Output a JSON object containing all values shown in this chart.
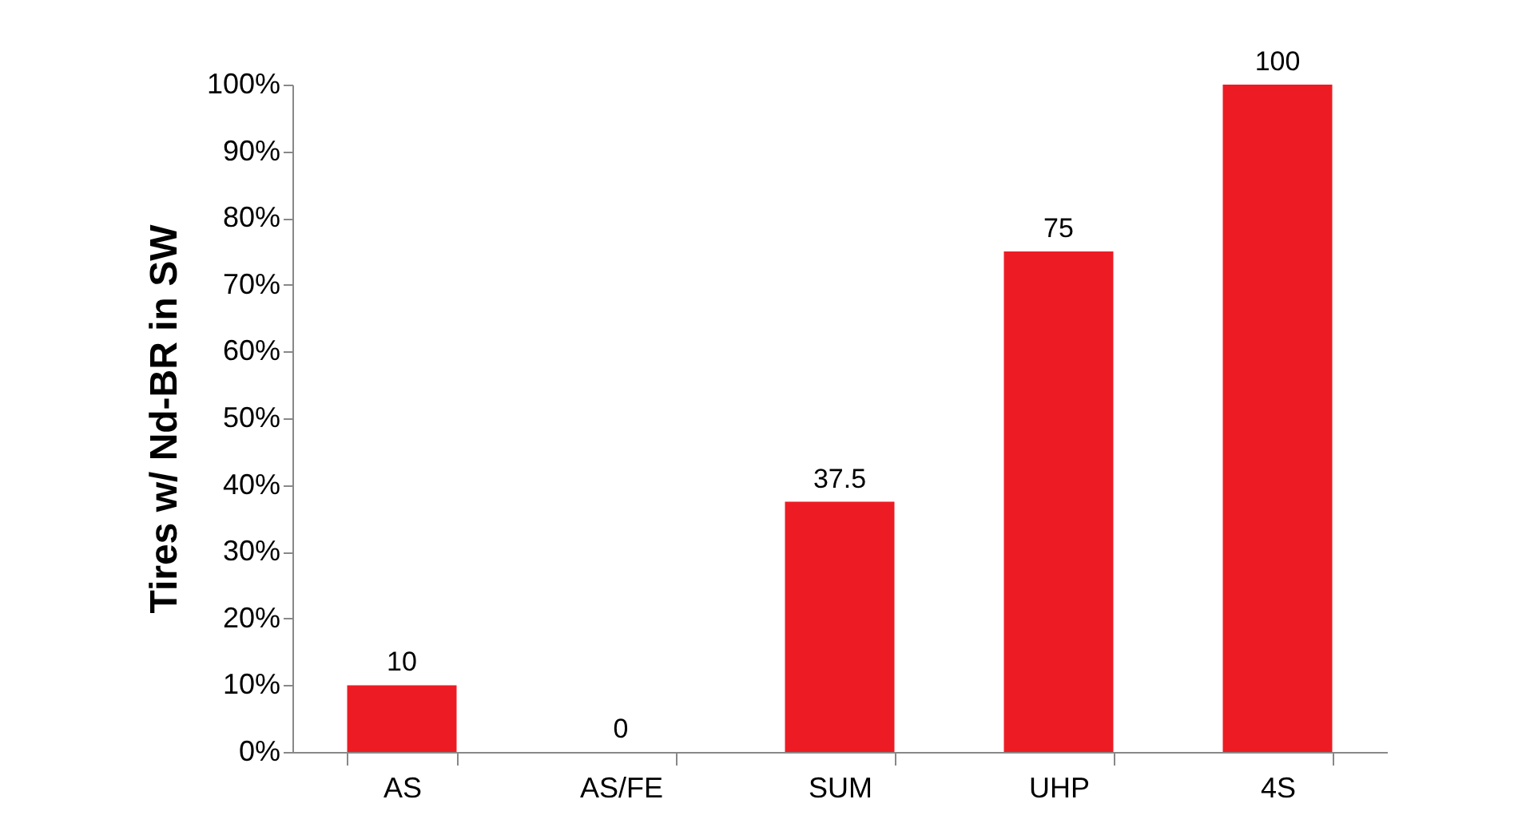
{
  "chart_data": {
    "type": "bar",
    "ylabel": "Tires w/ Nd-BR in SW",
    "categories": [
      "AS",
      "AS/FE",
      "SUM",
      "UHP",
      "4S"
    ],
    "values": [
      10,
      0,
      37.5,
      75,
      100
    ],
    "color": "#ed1c24",
    "ylim": [
      0,
      100
    ],
    "yticks": [
      {
        "value": 0,
        "label": "0%"
      },
      {
        "value": 10,
        "label": "10%"
      },
      {
        "value": 20,
        "label": "20%"
      },
      {
        "value": 30,
        "label": "30%"
      },
      {
        "value": 40,
        "label": "40%"
      },
      {
        "value": 50,
        "label": "50%"
      },
      {
        "value": 60,
        "label": "60%"
      },
      {
        "value": 70,
        "label": "70%"
      },
      {
        "value": 80,
        "label": "80%"
      },
      {
        "value": 90,
        "label": "90%"
      },
      {
        "value": 100,
        "label": "100%"
      }
    ],
    "data_labels": true,
    "grid": false
  }
}
